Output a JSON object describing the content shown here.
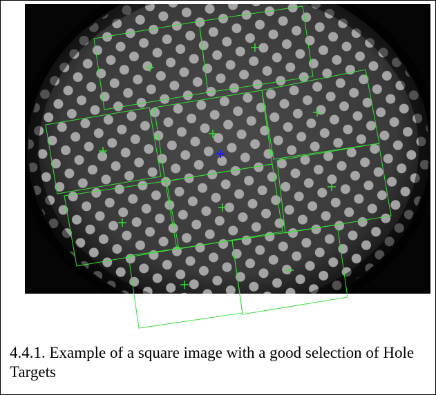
{
  "caption": "4.4.1. Example of a square image with a good selection of Hole Targets"
}
